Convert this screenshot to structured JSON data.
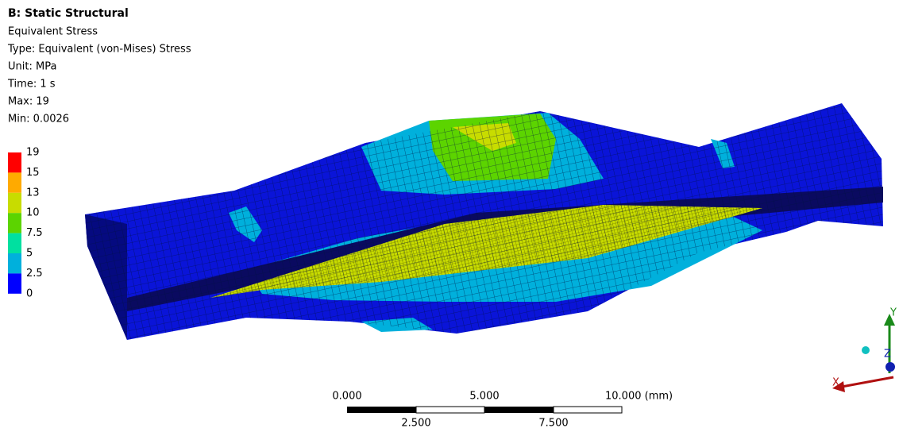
{
  "header": {
    "title": "B: Static Structural",
    "lines": [
      "Equivalent Stress",
      "Type: Equivalent (von-Mises) Stress",
      "Unit: MPa",
      "Time: 1 s",
      "Max: 19",
      "Min: 0.0026"
    ]
  },
  "legend": {
    "labels": [
      "19",
      "15",
      "13",
      "10",
      "7.5",
      "5",
      "2.5",
      "0"
    ],
    "colors": [
      "#ff0000",
      "#ffaa00",
      "#c8dc00",
      "#5cd400",
      "#00e0a0",
      "#00b0dc",
      "#0000ff"
    ]
  },
  "scale_bar": {
    "top_labels": [
      "0.000",
      "5.000",
      "10.000 (mm)"
    ],
    "bottom_labels": [
      "2.500",
      "7.500"
    ]
  },
  "triad": {
    "labels": [
      "Y",
      "Z",
      "X"
    ]
  }
}
